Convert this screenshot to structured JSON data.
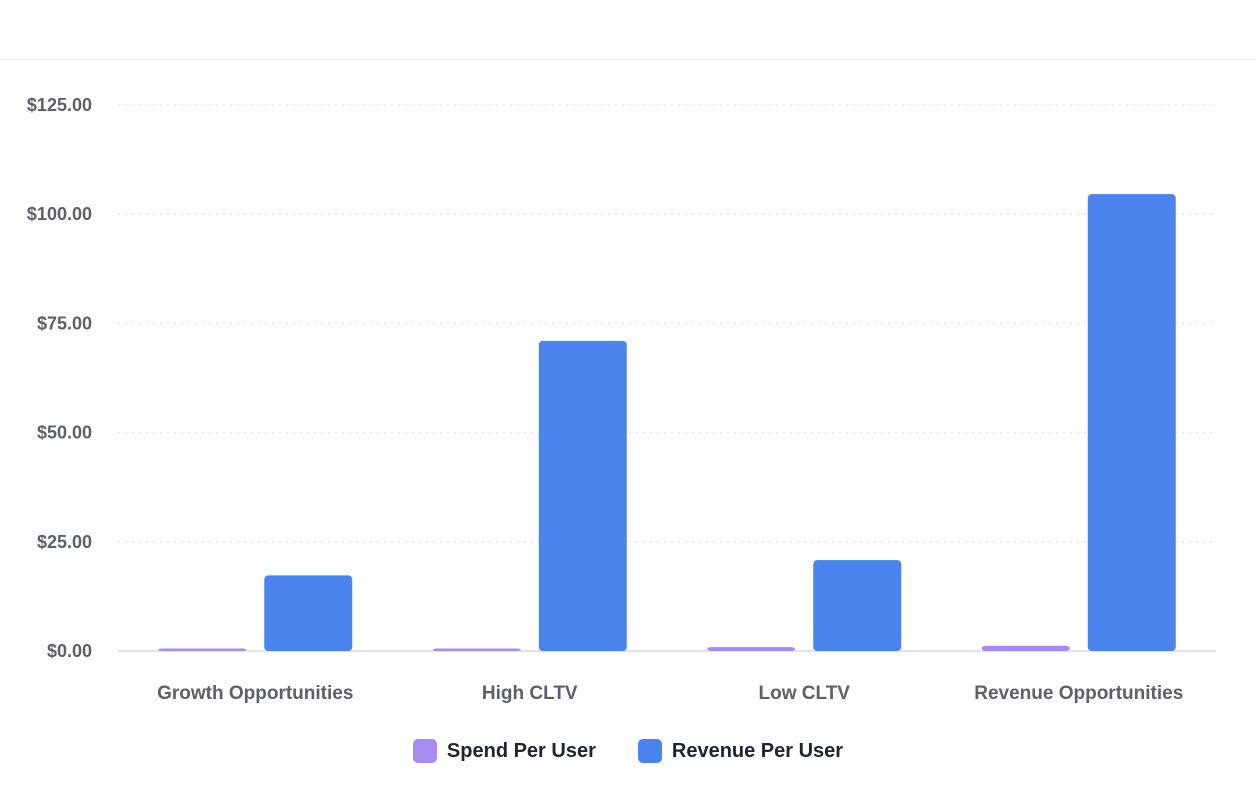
{
  "chart_data": {
    "type": "bar",
    "categories": [
      "Growth Opportunities",
      "High CLTV",
      "Low CLTV",
      "Revenue Opportunities"
    ],
    "series": [
      {
        "name": "Spend Per User",
        "color": "#a78bf0",
        "values": [
          0.4,
          0.4,
          0.9,
          1.2
        ]
      },
      {
        "name": "Revenue Per User",
        "color": "#4a84ec",
        "values": [
          17.3,
          71.0,
          20.8,
          104.6
        ]
      }
    ],
    "y_ticks": [
      "$0.00",
      "$25.00",
      "$50.00",
      "$75.00",
      "$100.00",
      "$125.00"
    ],
    "ylim": [
      0,
      125
    ],
    "grid": true,
    "legend_position": "bottom"
  }
}
